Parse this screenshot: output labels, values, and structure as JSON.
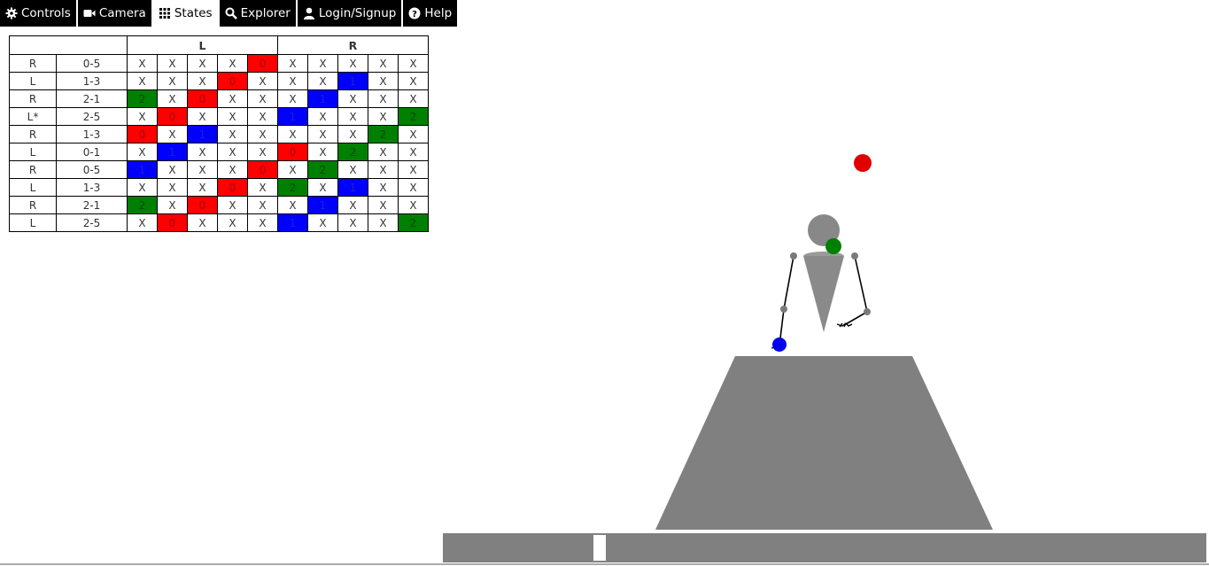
{
  "nav": {
    "tabs": [
      {
        "label": "Controls",
        "icon": "gear-icon"
      },
      {
        "label": "Camera",
        "icon": "video-camera-icon"
      },
      {
        "label": "States",
        "icon": "grid-icon",
        "active": true
      },
      {
        "label": "Explorer",
        "icon": "search-icon"
      },
      {
        "label": "Login/Signup",
        "icon": "user-icon"
      },
      {
        "label": "Help",
        "icon": "question-circle-icon"
      }
    ]
  },
  "states_table": {
    "header_left": "L",
    "header_right": "R",
    "rows": [
      {
        "hand": "R",
        "pair": "0-5",
        "cells": [
          "X",
          "X",
          "X",
          "X",
          "0",
          "X",
          "X",
          "X",
          "X",
          "X"
        ],
        "colors": [
          "",
          "",
          "",
          "",
          "red",
          "",
          "",
          "",
          "",
          ""
        ]
      },
      {
        "hand": "L",
        "pair": "1-3",
        "cells": [
          "X",
          "X",
          "X",
          "0",
          "X",
          "X",
          "X",
          "1",
          "X",
          "X"
        ],
        "colors": [
          "",
          "",
          "",
          "red",
          "",
          "",
          "",
          "blue",
          "",
          ""
        ]
      },
      {
        "hand": "R",
        "pair": "2-1",
        "cells": [
          "2",
          "X",
          "0",
          "X",
          "X",
          "X",
          "1",
          "X",
          "X",
          "X"
        ],
        "colors": [
          "green",
          "",
          "red",
          "",
          "",
          "",
          "blue",
          "",
          "",
          ""
        ]
      },
      {
        "hand": "L*",
        "pair": "2-5",
        "cells": [
          "X",
          "0",
          "X",
          "X",
          "X",
          "1",
          "X",
          "X",
          "X",
          "2"
        ],
        "colors": [
          "",
          "red",
          "",
          "",
          "",
          "blue",
          "",
          "",
          "",
          "green"
        ]
      },
      {
        "hand": "R",
        "pair": "1-3",
        "cells": [
          "0",
          "X",
          "1",
          "X",
          "X",
          "X",
          "X",
          "X",
          "2",
          "X"
        ],
        "colors": [
          "red",
          "",
          "blue",
          "",
          "",
          "",
          "",
          "",
          "green",
          ""
        ]
      },
      {
        "hand": "L",
        "pair": "0-1",
        "cells": [
          "X",
          "1",
          "X",
          "X",
          "X",
          "0",
          "X",
          "2",
          "X",
          "X"
        ],
        "colors": [
          "",
          "blue",
          "",
          "",
          "",
          "red",
          "",
          "green",
          "",
          ""
        ]
      },
      {
        "hand": "R",
        "pair": "0-5",
        "cells": [
          "1",
          "X",
          "X",
          "X",
          "0",
          "X",
          "2",
          "X",
          "X",
          "X"
        ],
        "colors": [
          "blue",
          "",
          "",
          "",
          "red",
          "",
          "green",
          "",
          "",
          ""
        ]
      },
      {
        "hand": "L",
        "pair": "1-3",
        "cells": [
          "X",
          "X",
          "X",
          "0",
          "X",
          "2",
          "X",
          "1",
          "X",
          "X"
        ],
        "colors": [
          "",
          "",
          "",
          "red",
          "",
          "green",
          "",
          "blue",
          "",
          ""
        ]
      },
      {
        "hand": "R",
        "pair": "2-1",
        "cells": [
          "2",
          "X",
          "0",
          "X",
          "X",
          "X",
          "1",
          "X",
          "X",
          "X"
        ],
        "colors": [
          "green",
          "",
          "red",
          "",
          "",
          "",
          "blue",
          "",
          "",
          ""
        ]
      },
      {
        "hand": "L",
        "pair": "2-5",
        "cells": [
          "X",
          "0",
          "X",
          "X",
          "X",
          "1",
          "X",
          "X",
          "X",
          "2"
        ],
        "colors": [
          "",
          "red",
          "",
          "",
          "",
          "blue",
          "",
          "",
          "",
          "green"
        ]
      }
    ]
  },
  "colors": {
    "red": "#ff0000",
    "blue": "#0000ff",
    "green": "#008000",
    "gray": "#808080",
    "nav_bg": "#000000"
  },
  "timeline": {
    "position": 0.2
  }
}
